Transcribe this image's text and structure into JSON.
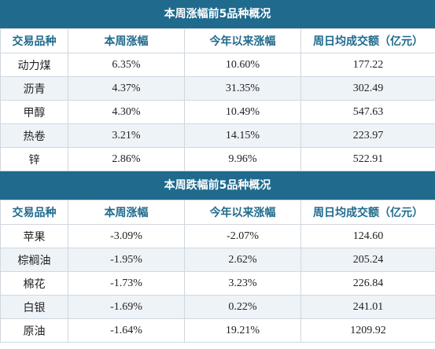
{
  "gainers": {
    "title": "本周涨幅前5品种概况",
    "headers": [
      "交易品种",
      "本周涨幅",
      "今年以来涨幅",
      "周日均成交额（亿元）"
    ],
    "rows": [
      [
        "动力煤",
        "6.35%",
        "10.60%",
        "177.22"
      ],
      [
        "沥青",
        "4.37%",
        "31.35%",
        "302.49"
      ],
      [
        "甲醇",
        "4.30%",
        "10.49%",
        "547.63"
      ],
      [
        "热卷",
        "3.21%",
        "14.15%",
        "223.97"
      ],
      [
        "锌",
        "2.86%",
        "9.96%",
        "522.91"
      ]
    ]
  },
  "losers": {
    "title": "本周跌幅前5品种概况",
    "headers": [
      "交易品种",
      "本周涨幅",
      "今年以来涨幅",
      "周日均成交额（亿元）"
    ],
    "rows": [
      [
        "苹果",
        "-3.09%",
        "-2.07%",
        "124.60"
      ],
      [
        "棕榈油",
        "-1.95%",
        "2.62%",
        "205.24"
      ],
      [
        "棉花",
        "-1.73%",
        "3.23%",
        "226.84"
      ],
      [
        "白银",
        "-1.69%",
        "0.22%",
        "241.01"
      ],
      [
        "原油",
        "-1.64%",
        "19.21%",
        "1209.92"
      ]
    ]
  },
  "colors": {
    "header_bg": "#1f6a8d",
    "header_text": "#1f6a8d",
    "stripe": "#eef3f8"
  }
}
